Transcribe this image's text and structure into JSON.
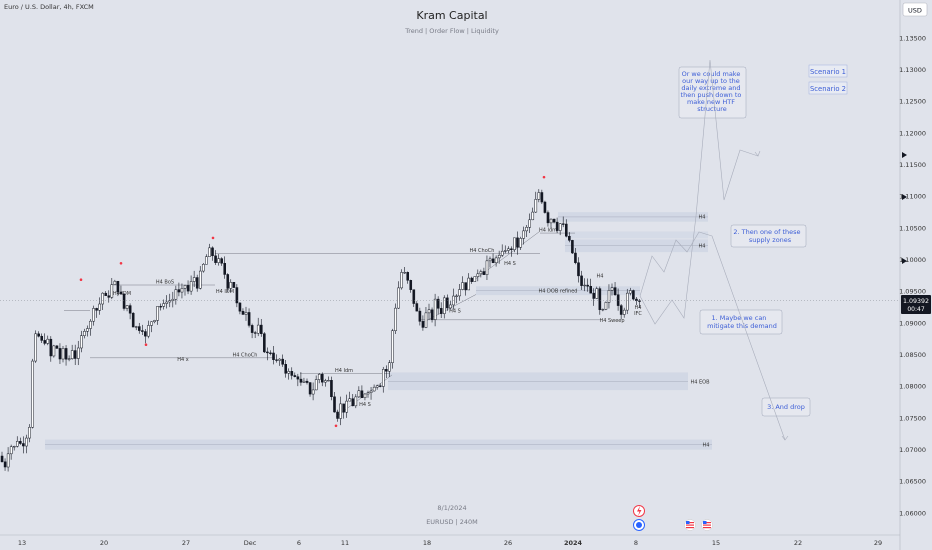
{
  "header": {
    "symbol_line": "Euro / U.S. Dollar, 4h, FXCM",
    "title": "Kram Capital",
    "subtitle": "Trend | Order Flow | Liquidity",
    "currency_button": "USD"
  },
  "footer": {
    "date": "8/1/2024",
    "symbol": "EURUSD | 240M"
  },
  "price_tag": {
    "price": "1.09392",
    "countdown": "00:47"
  },
  "scenario_buttons": [
    "Scenario 1",
    "Scenario 2"
  ],
  "notes": {
    "scenario_up": [
      "Or we could make",
      "our way up to the",
      "daily extreme and",
      "then push down to",
      "make new HTF",
      "structure"
    ],
    "supply": [
      "2. Then one of these",
      "supply zones"
    ],
    "demand": [
      "1. Maybe we can",
      "mitigate this demand"
    ],
    "drop": [
      "3. And drop"
    ]
  },
  "chart_labels": {
    "bos": "H4 BoS",
    "idm1": "H4 IDM",
    "idm_left": "H4 IDM",
    "x_left": "H4 x",
    "choch_left": "H4 ChoCh",
    "idm_mid": "H4 Idm",
    "s_mid": "H4 S",
    "choch_top": "H4 ChoCh",
    "idm_top": "H4 Idm",
    "s_top": "H4 S",
    "s_low": "H4 S",
    "dob": "H4 DOB refined",
    "sweep": "H4 Sweep",
    "h4_a": "H4",
    "h4_b": "H4",
    "ifc_h4": "H4",
    "ifc": "IFC",
    "eob": "H4 EOB",
    "bottom_h4": "H4",
    "ifc_top": "H4"
  },
  "colors": {
    "background": "#e0e3eb",
    "candle": "#131722",
    "zone": "#c6cfe0",
    "note": "#3d5ed6",
    "marker": "#f23645"
  },
  "chart_data": {
    "type": "candlestick",
    "y_ticks": [
      "1.13500",
      "1.13000",
      "1.12500",
      "1.12000",
      "1.11500",
      "1.11000",
      "1.10500",
      "1.10000",
      "1.09500",
      "1.09000",
      "1.08500",
      "1.08000",
      "1.07500",
      "1.07000",
      "1.06500",
      "1.06000"
    ],
    "y_range": [
      1.0585,
      1.1385
    ],
    "x_ticks": [
      "13",
      "20",
      "27",
      "Dec",
      "6",
      "11",
      "18",
      "26",
      "2024",
      "8",
      "15",
      "22",
      "29"
    ],
    "last_price": 1.09392,
    "swing_path": [
      [
        0,
        1.069
      ],
      [
        5,
        1.0672
      ],
      [
        10,
        1.071
      ],
      [
        14,
        1.07
      ],
      [
        18,
        1.0718
      ],
      [
        22,
        1.0705
      ],
      [
        27,
        1.0724
      ],
      [
        30,
        1.074
      ],
      [
        34,
        1.087
      ],
      [
        38,
        1.0882
      ],
      [
        43,
        1.0866
      ],
      [
        47,
        1.088
      ],
      [
        51,
        1.0845
      ],
      [
        56,
        1.087
      ],
      [
        60,
        1.0843
      ],
      [
        64,
        1.0855
      ],
      [
        68,
        1.0836
      ],
      [
        73,
        1.0862
      ],
      [
        77,
        1.084
      ],
      [
        81,
        1.0872
      ],
      [
        86,
        1.09
      ],
      [
        90,
        1.089
      ],
      [
        94,
        1.093
      ],
      [
        98,
        1.0918
      ],
      [
        103,
        1.0948
      ],
      [
        107,
        1.0935
      ],
      [
        112,
        1.0958
      ],
      [
        116,
        1.0962
      ],
      [
        120,
        1.095
      ],
      [
        125,
        1.092
      ],
      [
        129,
        1.0932
      ],
      [
        133,
        1.09
      ],
      [
        138,
        1.089
      ],
      [
        142,
        1.0898
      ],
      [
        146,
        1.0875
      ],
      [
        150,
        1.09
      ],
      [
        155,
        1.091
      ],
      [
        159,
        1.0935
      ],
      [
        163,
        1.092
      ],
      [
        168,
        1.0942
      ],
      [
        172,
        1.093
      ],
      [
        176,
        1.0955
      ],
      [
        181,
        1.094
      ],
      [
        185,
        1.0962
      ],
      [
        189,
        1.0948
      ],
      [
        194,
        1.0975
      ],
      [
        198,
        1.096
      ],
      [
        202,
        1.0982
      ],
      [
        207,
        1.1005
      ],
      [
        211,
        1.1015
      ],
      [
        215,
        1.1
      ],
      [
        220,
        1.0995
      ],
      [
        224,
        1.0985
      ],
      [
        228,
        1.096
      ],
      [
        233,
        1.0972
      ],
      [
        237,
        1.093
      ],
      [
        241,
        1.091
      ],
      [
        246,
        1.0925
      ],
      [
        250,
        1.09
      ],
      [
        254,
        1.088
      ],
      [
        259,
        1.0892
      ],
      [
        263,
        1.087
      ],
      [
        267,
        1.0848
      ],
      [
        272,
        1.0858
      ],
      [
        276,
        1.0835
      ],
      [
        280,
        1.0842
      ],
      [
        285,
        1.082
      ],
      [
        289,
        1.083
      ],
      [
        293,
        1.081
      ],
      [
        298,
        1.0818
      ],
      [
        302,
        1.08
      ],
      [
        306,
        1.0805
      ],
      [
        311,
        1.079
      ],
      [
        315,
        1.08
      ],
      [
        319,
        1.0822
      ],
      [
        324,
        1.0805
      ],
      [
        328,
        1.0812
      ],
      [
        332,
        1.079
      ],
      [
        337,
        1.075
      ],
      [
        341,
        1.077
      ],
      [
        345,
        1.0762
      ],
      [
        350,
        1.078
      ],
      [
        354,
        1.077
      ],
      [
        358,
        1.079
      ],
      [
        363,
        1.0778
      ],
      [
        367,
        1.08
      ],
      [
        371,
        1.079
      ],
      [
        376,
        1.081
      ],
      [
        380,
        1.08
      ],
      [
        384,
        1.083
      ],
      [
        389,
        1.082
      ],
      [
        393,
        1.089
      ],
      [
        397,
        1.094
      ],
      [
        402,
        1.098
      ],
      [
        406,
        1.0975
      ],
      [
        410,
        1.0955
      ],
      [
        415,
        1.093
      ],
      [
        419,
        1.0905
      ],
      [
        423,
        1.0898
      ],
      [
        428,
        1.092
      ],
      [
        432,
        1.0905
      ],
      [
        436,
        1.0935
      ],
      [
        441,
        1.0915
      ],
      [
        445,
        1.094
      ],
      [
        449,
        1.0925
      ],
      [
        454,
        1.095
      ],
      [
        458,
        1.0945
      ],
      [
        462,
        1.0968
      ],
      [
        467,
        1.0955
      ],
      [
        471,
        1.0975
      ],
      [
        475,
        1.0965
      ],
      [
        480,
        1.099
      ],
      [
        484,
        1.098
      ],
      [
        488,
        1.1
      ],
      [
        493,
        1.099
      ],
      [
        497,
        1.101
      ],
      [
        501,
        1.1
      ],
      [
        506,
        1.102
      ],
      [
        510,
        1.101
      ],
      [
        514,
        1.103
      ],
      [
        519,
        1.102
      ],
      [
        523,
        1.104
      ],
      [
        527,
        1.105
      ],
      [
        532,
        1.1065
      ],
      [
        536,
        1.109
      ],
      [
        540,
        1.111
      ],
      [
        545,
        1.108
      ],
      [
        549,
        1.106
      ],
      [
        553,
        1.107
      ],
      [
        558,
        1.105
      ],
      [
        562,
        1.106
      ],
      [
        566,
        1.104
      ],
      [
        571,
        1.102
      ],
      [
        575,
        1.1
      ],
      [
        579,
        1.097
      ],
      [
        584,
        1.0955
      ],
      [
        588,
        1.096
      ],
      [
        592,
        1.094
      ],
      [
        597,
        1.095
      ],
      [
        601,
        1.091
      ],
      [
        605,
        1.092
      ],
      [
        610,
        1.095
      ],
      [
        614,
        1.096
      ],
      [
        618,
        1.0935
      ],
      [
        623,
        1.0915
      ],
      [
        627,
        1.094
      ],
      [
        632,
        1.095
      ],
      [
        636,
        1.0935
      ],
      [
        640,
        1.0942
      ]
    ],
    "points": [
      {
        "x": "Nov 13",
        "y": 1.069
      },
      {
        "x": "Nov 22",
        "y": 1.0962
      },
      {
        "x": "Nov 29",
        "y": 1.1015
      },
      {
        "x": "Dec 8",
        "y": 1.075
      },
      {
        "x": "Dec 14",
        "y": 1.098
      },
      {
        "x": "Dec 28",
        "y": 1.111
      },
      {
        "x": "Jan 5",
        "y": 1.091
      },
      {
        "x": "Jan 8",
        "y": 1.0939
      }
    ],
    "zones": [
      {
        "label": "H4",
        "y0": 1.106,
        "y1": 1.1075,
        "x": [
          558,
          708
        ]
      },
      {
        "label": "H4",
        "y0": 1.1012,
        "y1": 1.1032,
        "x": [
          565,
          708
        ]
      },
      {
        "label": "H4 DOB refined",
        "y0": 1.0944,
        "y1": 1.0958,
        "x": [
          476,
          640
        ]
      },
      {
        "label": "H4 EOB",
        "y0": 1.0794,
        "y1": 1.0822,
        "x": [
          388,
          688
        ]
      },
      {
        "label": "H4",
        "y0": 1.07,
        "y1": 1.0716,
        "x": [
          45,
          712
        ]
      }
    ]
  }
}
